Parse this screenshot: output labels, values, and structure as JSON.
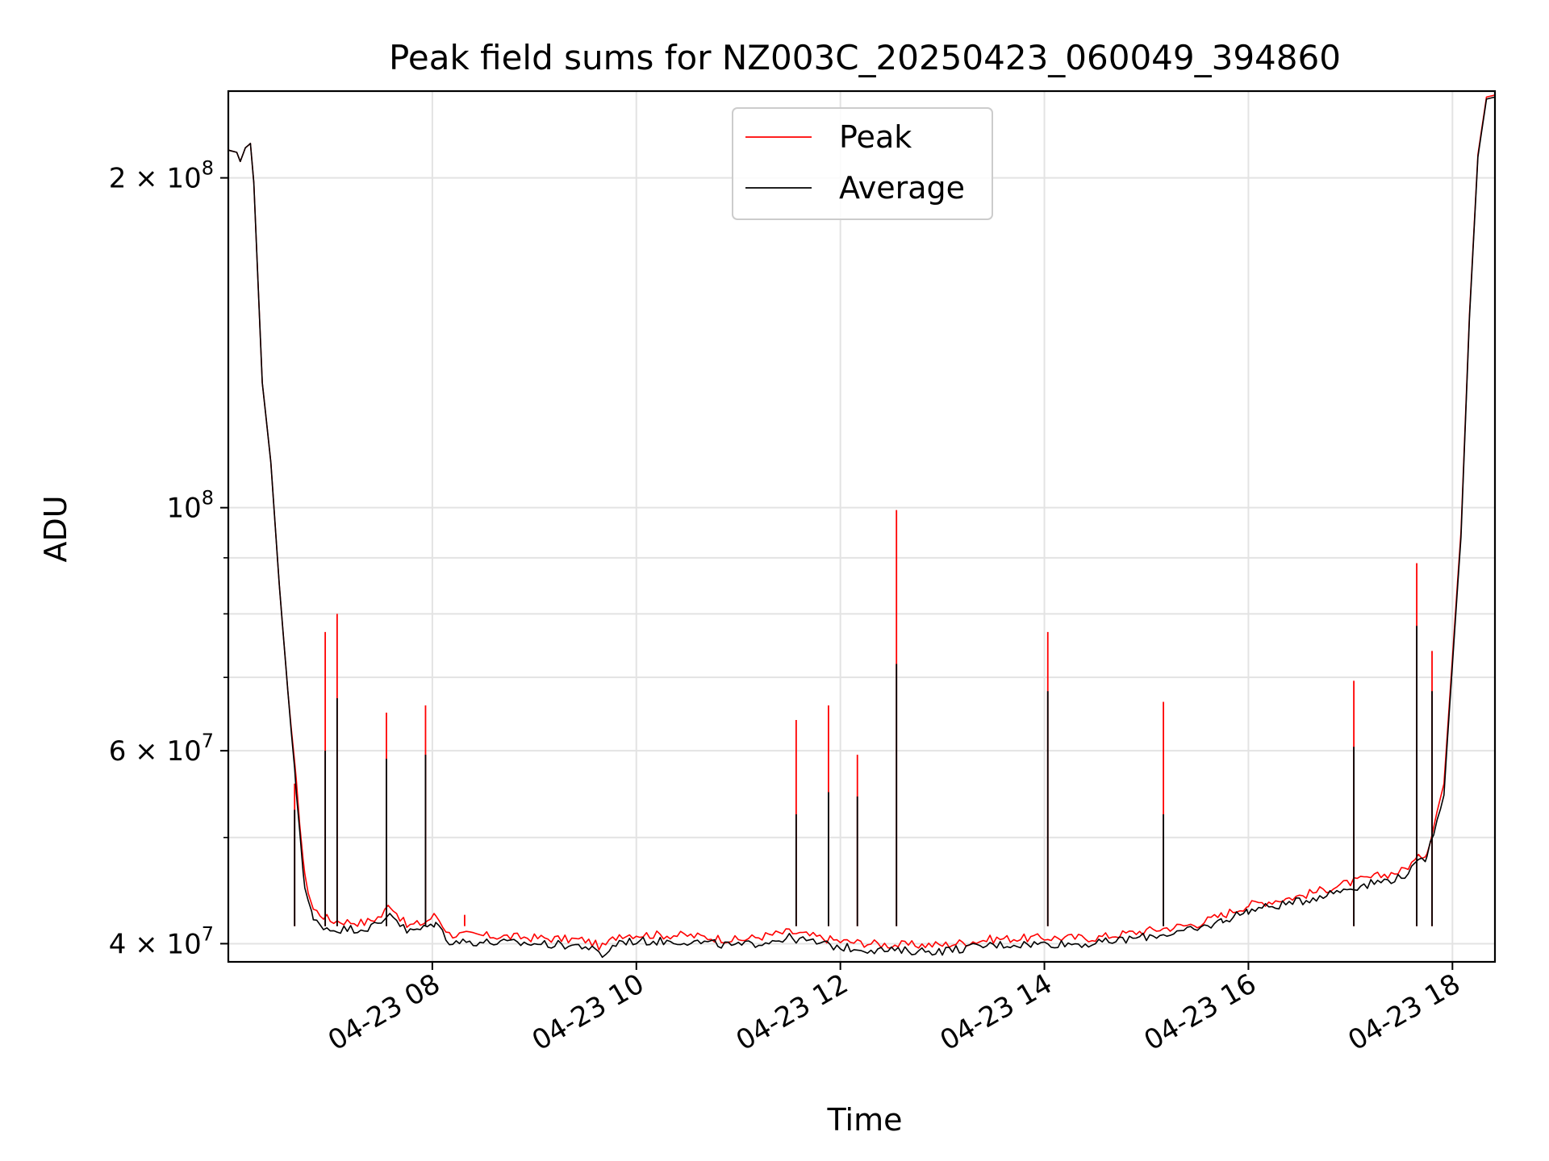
{
  "chart_data": {
    "type": "line",
    "title": "Peak field sums for NZ003C_20250423_060049_394860",
    "xlabel": "Time",
    "ylabel": "ADU",
    "yscale": "log",
    "grid": true,
    "legend_position": "top-center",
    "xlim": [
      "2025-04-23 06:00",
      "2025-04-23 18:25"
    ],
    "ylim": [
      38500000,
      240000000
    ],
    "x_ticks": [
      {
        "time": "2025-04-23 08:00",
        "label": "04-23 08"
      },
      {
        "time": "2025-04-23 10:00",
        "label": "04-23 10"
      },
      {
        "time": "2025-04-23 12:00",
        "label": "04-23 12"
      },
      {
        "time": "2025-04-23 14:00",
        "label": "04-23 14"
      },
      {
        "time": "2025-04-23 16:00",
        "label": "04-23 16"
      },
      {
        "time": "2025-04-23 18:00",
        "label": "04-23 18"
      }
    ],
    "y_ticks": [
      {
        "value": 40000000,
        "mantissa": "4",
        "exponent": "7"
      },
      {
        "value": 60000000,
        "mantissa": "6",
        "exponent": "7"
      },
      {
        "value": 100000000,
        "mantissa": "",
        "exponent": "8"
      },
      {
        "value": 200000000,
        "mantissa": "2",
        "exponent": "8"
      }
    ],
    "y_minor_ticks": [
      50000000,
      70000000,
      80000000,
      90000000
    ],
    "series": [
      {
        "name": "Peak",
        "color": "#ff0000",
        "points": [
          [
            "2025-04-23 06:00",
            212000000
          ],
          [
            "2025-04-23 06:05",
            211000000
          ],
          [
            "2025-04-23 06:07",
            207000000
          ],
          [
            "2025-04-23 06:10",
            213000000
          ],
          [
            "2025-04-23 06:13",
            215000000
          ],
          [
            "2025-04-23 06:15",
            198000000
          ],
          [
            "2025-04-23 06:20",
            130000000
          ],
          [
            "2025-04-23 06:25",
            110000000
          ],
          [
            "2025-04-23 06:30",
            85000000
          ],
          [
            "2025-04-23 06:35",
            68000000
          ],
          [
            "2025-04-23 06:40",
            56000000
          ],
          [
            "2025-04-23 06:45",
            46000000
          ],
          [
            "2025-04-23 06:50",
            43000000
          ],
          [
            "2025-04-23 07:00",
            42000000
          ],
          [
            "2025-04-23 07:20",
            41800000
          ],
          [
            "2025-04-23 07:30",
            42400000
          ],
          [
            "2025-04-23 07:35",
            43500000
          ],
          [
            "2025-04-23 07:45",
            41500000
          ],
          [
            "2025-04-23 07:55",
            41800000
          ],
          [
            "2025-04-23 08:02",
            42500000
          ],
          [
            "2025-04-23 08:10",
            40800000
          ],
          [
            "2025-04-23 09:00",
            40500000
          ],
          [
            "2025-04-23 09:30",
            40300000
          ],
          [
            "2025-04-23 09:40",
            39700000
          ],
          [
            "2025-04-23 09:50",
            40800000
          ],
          [
            "2025-04-23 10:30",
            40700000
          ],
          [
            "2025-04-23 11:00",
            40300000
          ],
          [
            "2025-04-23 11:30",
            41000000
          ],
          [
            "2025-04-23 12:00",
            40200000
          ],
          [
            "2025-04-23 12:30",
            39900000
          ],
          [
            "2025-04-23 13:00",
            39900000
          ],
          [
            "2025-04-23 13:30",
            40400000
          ],
          [
            "2025-04-23 14:00",
            40500000
          ],
          [
            "2025-04-23 14:30",
            40500000
          ],
          [
            "2025-04-23 15:00",
            41100000
          ],
          [
            "2025-04-23 15:30",
            41700000
          ],
          [
            "2025-04-23 15:45",
            42500000
          ],
          [
            "2025-04-23 16:00",
            43400000
          ],
          [
            "2025-04-23 16:30",
            44200000
          ],
          [
            "2025-04-23 17:00",
            45500000
          ],
          [
            "2025-04-23 17:30",
            46600000
          ],
          [
            "2025-04-23 17:45",
            48500000
          ],
          [
            "2025-04-23 17:55",
            56000000
          ],
          [
            "2025-04-23 18:05",
            95000000
          ],
          [
            "2025-04-23 18:10",
            150000000
          ],
          [
            "2025-04-23 18:15",
            210000000
          ],
          [
            "2025-04-23 18:20",
            237000000
          ],
          [
            "2025-04-23 18:25",
            238000000
          ]
        ],
        "spikes": [
          [
            "2025-04-23 06:39",
            56000000
          ],
          [
            "2025-04-23 06:57",
            77000000
          ],
          [
            "2025-04-23 07:04",
            80000000
          ],
          [
            "2025-04-23 07:33",
            65000000
          ],
          [
            "2025-04-23 07:56",
            66000000
          ],
          [
            "2025-04-23 08:19",
            42500000
          ],
          [
            "2025-04-23 11:34",
            64000000
          ],
          [
            "2025-04-23 11:53",
            66000000
          ],
          [
            "2025-04-23 12:10",
            59500000
          ],
          [
            "2025-04-23 12:33",
            99500000
          ],
          [
            "2025-04-23 14:02",
            77000000
          ],
          [
            "2025-04-23 15:10",
            66500000
          ],
          [
            "2025-04-23 17:02",
            69500000
          ],
          [
            "2025-04-23 17:39",
            89000000
          ],
          [
            "2025-04-23 17:48",
            74000000
          ]
        ]
      },
      {
        "name": "Average",
        "color": "#000000",
        "points": [
          [
            "2025-04-23 06:00",
            212000000
          ],
          [
            "2025-04-23 06:05",
            211000000
          ],
          [
            "2025-04-23 06:07",
            207000000
          ],
          [
            "2025-04-23 06:10",
            213000000
          ],
          [
            "2025-04-23 06:13",
            215000000
          ],
          [
            "2025-04-23 06:15",
            198000000
          ],
          [
            "2025-04-23 06:20",
            130000000
          ],
          [
            "2025-04-23 06:25",
            110000000
          ],
          [
            "2025-04-23 06:30",
            85000000
          ],
          [
            "2025-04-23 06:35",
            68000000
          ],
          [
            "2025-04-23 06:40",
            55000000
          ],
          [
            "2025-04-23 06:45",
            45000000
          ],
          [
            "2025-04-23 06:50",
            42000000
          ],
          [
            "2025-04-23 07:00",
            41200000
          ],
          [
            "2025-04-23 07:20",
            41300000
          ],
          [
            "2025-04-23 07:30",
            41700000
          ],
          [
            "2025-04-23 07:35",
            42800000
          ],
          [
            "2025-04-23 07:45",
            41000000
          ],
          [
            "2025-04-23 07:55",
            41300000
          ],
          [
            "2025-04-23 08:02",
            41800000
          ],
          [
            "2025-04-23 08:10",
            40200000
          ],
          [
            "2025-04-23 09:00",
            40000000
          ],
          [
            "2025-04-23 09:30",
            39800000
          ],
          [
            "2025-04-23 09:40",
            39000000
          ],
          [
            "2025-04-23 09:50",
            40200000
          ],
          [
            "2025-04-23 10:30",
            40200000
          ],
          [
            "2025-04-23 11:00",
            39800000
          ],
          [
            "2025-04-23 11:30",
            40500000
          ],
          [
            "2025-04-23 12:00",
            39700000
          ],
          [
            "2025-04-23 12:30",
            39400000
          ],
          [
            "2025-04-23 13:00",
            39400000
          ],
          [
            "2025-04-23 13:30",
            39900000
          ],
          [
            "2025-04-23 14:00",
            40000000
          ],
          [
            "2025-04-23 14:30",
            40000000
          ],
          [
            "2025-04-23 15:00",
            40600000
          ],
          [
            "2025-04-23 15:30",
            41200000
          ],
          [
            "2025-04-23 15:45",
            42000000
          ],
          [
            "2025-04-23 16:00",
            42900000
          ],
          [
            "2025-04-23 16:30",
            43700000
          ],
          [
            "2025-04-23 17:00",
            45000000
          ],
          [
            "2025-04-23 17:30",
            46000000
          ],
          [
            "2025-04-23 17:45",
            48000000
          ],
          [
            "2025-04-23 17:55",
            55000000
          ],
          [
            "2025-04-23 18:05",
            94000000
          ],
          [
            "2025-04-23 18:10",
            149000000
          ],
          [
            "2025-04-23 18:15",
            209000000
          ],
          [
            "2025-04-23 18:20",
            236000000
          ],
          [
            "2025-04-23 18:25",
            237000000
          ]
        ],
        "spikes": [
          [
            "2025-04-23 06:39",
            53000000
          ],
          [
            "2025-04-23 06:57",
            60000000
          ],
          [
            "2025-04-23 07:04",
            67000000
          ],
          [
            "2025-04-23 07:33",
            59000000
          ],
          [
            "2025-04-23 07:56",
            59500000
          ],
          [
            "2025-04-23 11:34",
            52500000
          ],
          [
            "2025-04-23 11:53",
            55000000
          ],
          [
            "2025-04-23 12:10",
            54500000
          ],
          [
            "2025-04-23 12:33",
            72000000
          ],
          [
            "2025-04-23 14:02",
            68000000
          ],
          [
            "2025-04-23 15:10",
            52500000
          ],
          [
            "2025-04-23 17:02",
            60500000
          ],
          [
            "2025-04-23 17:39",
            78000000
          ],
          [
            "2025-04-23 17:48",
            68000000
          ]
        ]
      }
    ]
  }
}
